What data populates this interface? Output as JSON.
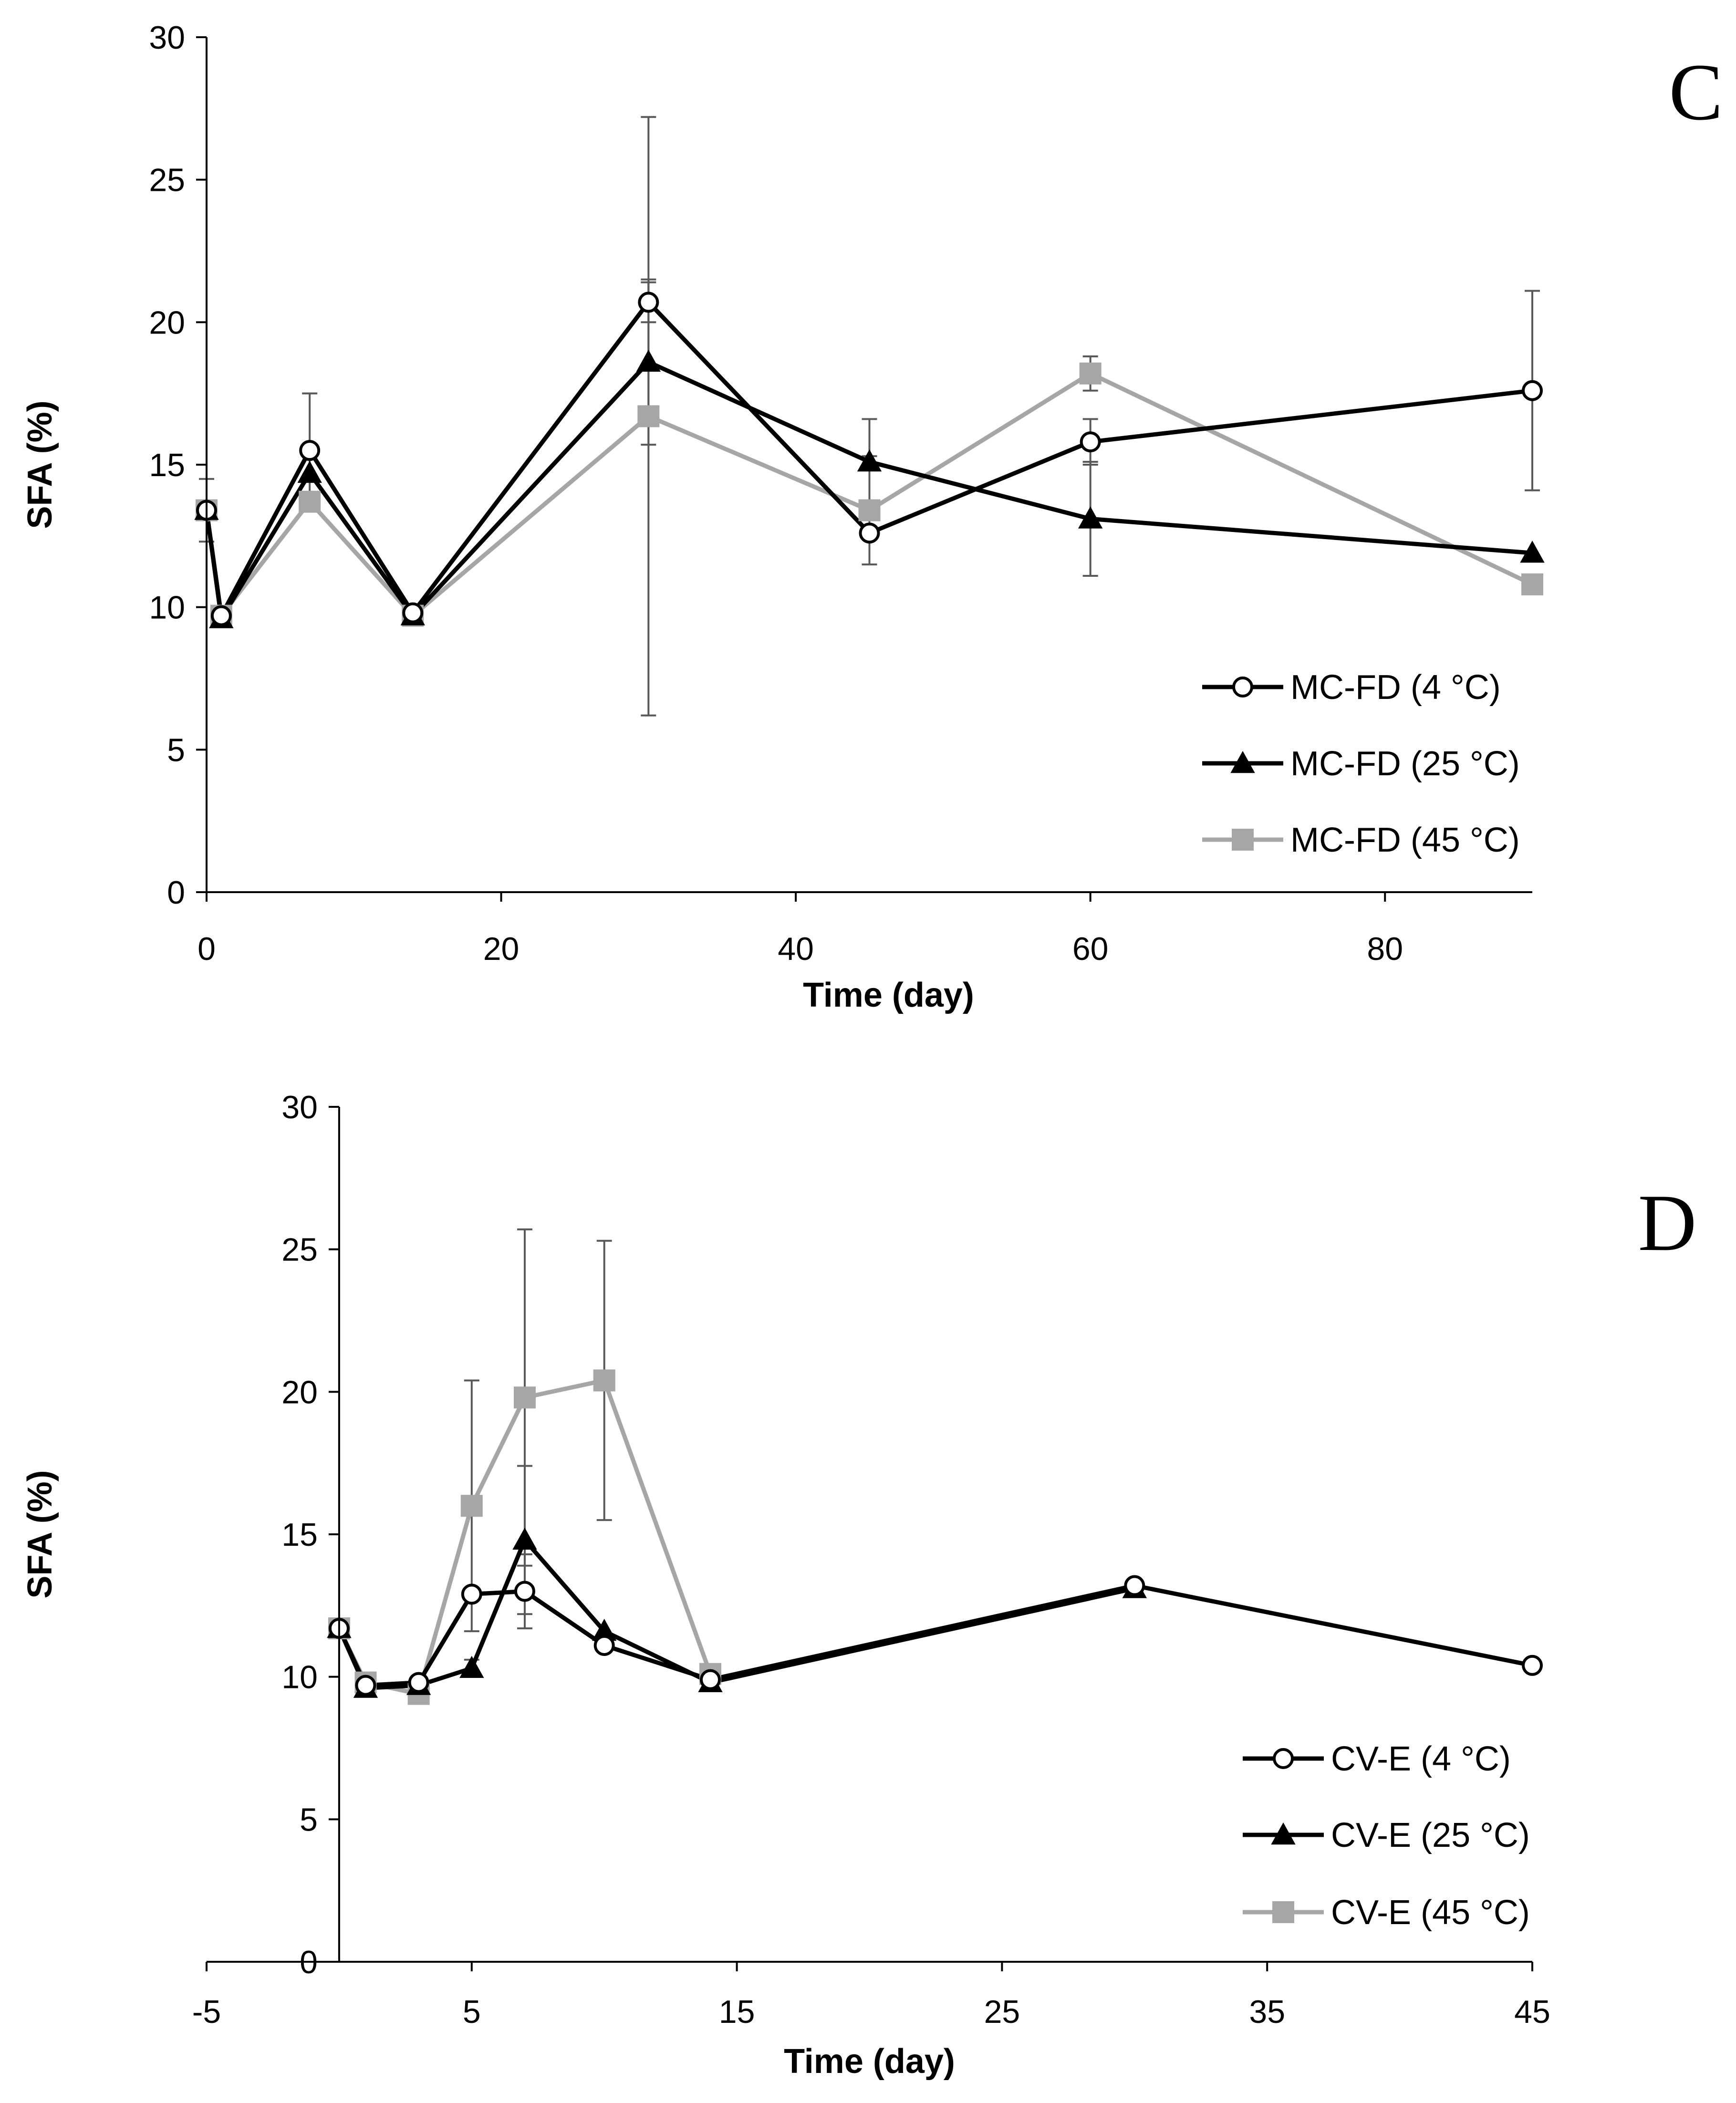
{
  "chart_data": [
    {
      "type": "line",
      "panel_label": "C",
      "xlabel": "Time (day)",
      "ylabel": "SFA (%)",
      "xlim": [
        0,
        90
      ],
      "ylim": [
        0,
        30
      ],
      "xticks": [
        0,
        20,
        40,
        60,
        80
      ],
      "yticks": [
        0,
        5,
        10,
        15,
        20,
        25,
        30
      ],
      "x_tick_labels": [
        "0",
        "20",
        "40",
        "60",
        "80"
      ],
      "y_tick_labels": [
        "0",
        "5",
        "10",
        "15",
        "20",
        "25",
        "30"
      ],
      "legend_position": "bottom-right",
      "series": [
        {
          "name": "MC-FD (4 °C)",
          "color": "#000000",
          "marker": "circle-open",
          "x": [
            0,
            1,
            7,
            14,
            30,
            45,
            60,
            90
          ],
          "y": [
            13.4,
            9.7,
            15.5,
            9.8,
            20.7,
            12.6,
            15.8,
            17.6
          ],
          "err": [
            0,
            0,
            2.0,
            0,
            0.7,
            0,
            0.8,
            3.5
          ]
        },
        {
          "name": "MC-FD (25 °C)",
          "color": "#000000",
          "marker": "triangle",
          "x": [
            0,
            1,
            7,
            14,
            30,
            45,
            60,
            90
          ],
          "y": [
            13.4,
            9.6,
            14.7,
            9.7,
            18.6,
            15.1,
            13.1,
            11.9
          ],
          "err": [
            0,
            0,
            0,
            0,
            2.9,
            1.5,
            2.0,
            0
          ]
        },
        {
          "name": "MC-FD (45 °C)",
          "color": "#a6a6a6",
          "marker": "square",
          "x": [
            0,
            1,
            7,
            14,
            30,
            45,
            60,
            90
          ],
          "y": [
            13.4,
            9.7,
            13.7,
            9.7,
            16.7,
            13.4,
            18.2,
            10.8
          ],
          "err": [
            1.1,
            0,
            0,
            0,
            10.5,
            1.9,
            0.6,
            0
          ]
        }
      ]
    },
    {
      "type": "line",
      "panel_label": "D",
      "xlabel": "Time (day)",
      "ylabel": "SFA (%)",
      "xlim": [
        -5,
        45
      ],
      "ylim": [
        0,
        30
      ],
      "xticks": [
        -5,
        5,
        15,
        25,
        35,
        45
      ],
      "yticks": [
        0,
        5,
        10,
        15,
        20,
        25,
        30
      ],
      "x_tick_labels": [
        "-5",
        "5",
        "15",
        "25",
        "35",
        "45"
      ],
      "y_tick_labels": [
        "0",
        "5",
        "10",
        "15",
        "20",
        "25",
        "30"
      ],
      "legend_position": "bottom-right",
      "series": [
        {
          "name": "CV-E (4 °C)",
          "color": "#000000",
          "marker": "circle-open",
          "x": [
            0,
            1,
            3,
            5,
            7,
            10,
            14,
            30,
            45
          ],
          "y": [
            11.7,
            9.7,
            9.8,
            12.9,
            13.0,
            11.1,
            9.9,
            13.2,
            10.4
          ],
          "err": [
            0,
            0,
            0,
            0,
            1.3,
            0,
            0,
            0,
            0
          ]
        },
        {
          "name": "CV-E (25 °C)",
          "color": "#000000",
          "marker": "triangle",
          "x": [
            0,
            1,
            3,
            5,
            7,
            10,
            14,
            30
          ],
          "y": [
            11.7,
            9.6,
            9.7,
            10.3,
            14.8,
            11.6,
            9.8,
            13.1
          ],
          "err": [
            0,
            0,
            0,
            0.3,
            2.6,
            0,
            0,
            0
          ]
        },
        {
          "name": "CV-E (45 °C)",
          "color": "#a6a6a6",
          "marker": "square",
          "x": [
            0,
            1,
            3,
            5,
            7,
            10,
            14
          ],
          "y": [
            11.7,
            9.8,
            9.4,
            16.0,
            19.8,
            20.4,
            10.1
          ],
          "err": [
            0,
            0,
            0,
            4.4,
            5.9,
            4.9,
            0
          ]
        }
      ]
    }
  ]
}
